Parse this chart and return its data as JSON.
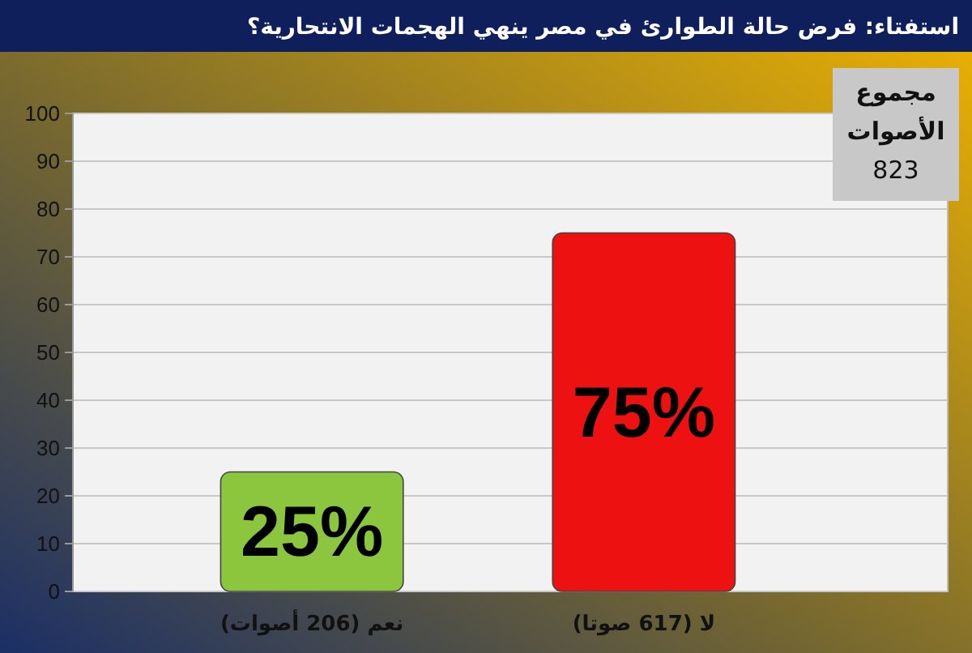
{
  "chart_data": {
    "type": "bar",
    "title": "استفتاء: فرض حالة الطوارئ في مصر ينهي الهجمات الانتحارية؟",
    "categories": [
      "نعم (206 أصوات)",
      "لا  (617 صوتا)"
    ],
    "values": [
      25,
      75
    ],
    "value_labels": [
      "25%",
      "75%"
    ],
    "colors": [
      "#8cc63f",
      "#ee1111"
    ],
    "ylim": [
      0,
      100
    ],
    "yticks": [
      0,
      10,
      20,
      30,
      40,
      50,
      60,
      70,
      80,
      90,
      100
    ],
    "grid": "y",
    "annotations": [
      "مجموع",
      "الأصوات",
      "823"
    ]
  }
}
